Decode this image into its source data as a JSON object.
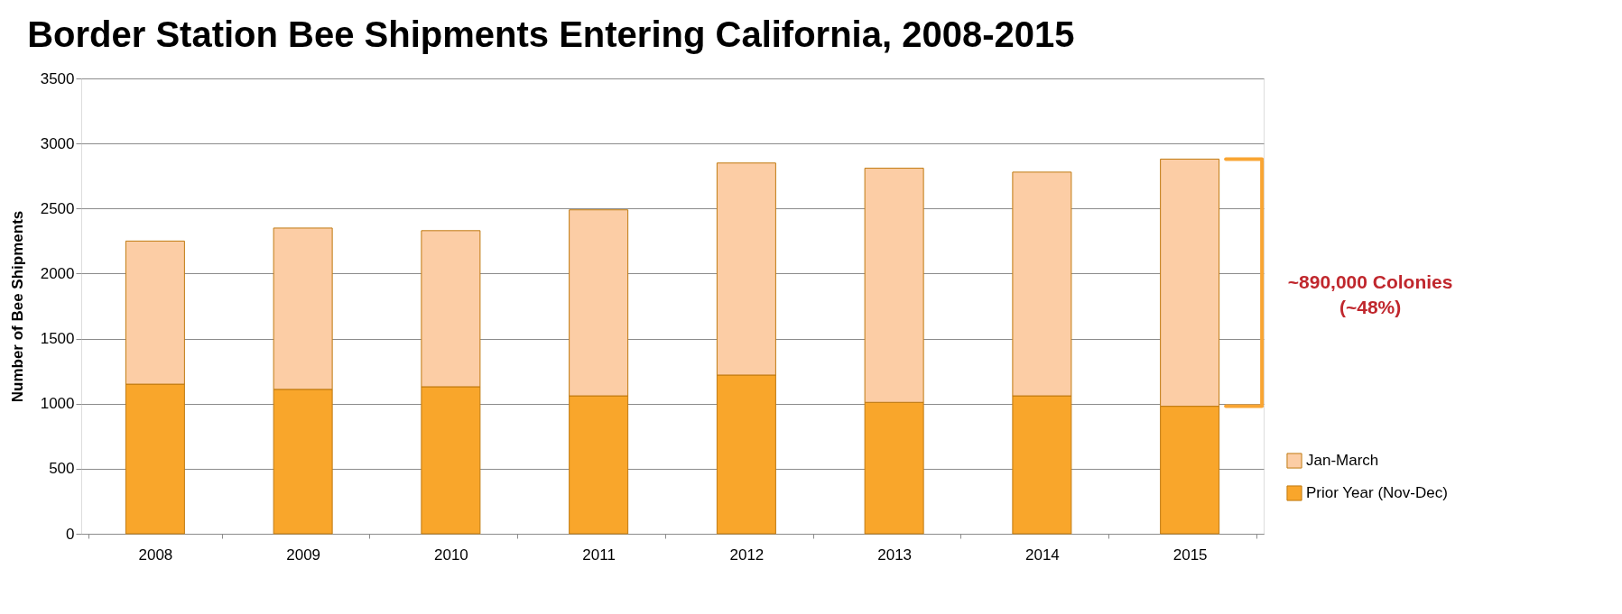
{
  "chart_data": {
    "type": "bar",
    "title": "Border Station Bee Shipments Entering California, 2008-2015",
    "ylabel": "Number of Bee Shipments",
    "categories": [
      "2008",
      "2009",
      "2010",
      "2011",
      "2012",
      "2013",
      "2014",
      "2015"
    ],
    "stacked": true,
    "series": [
      {
        "name": "Prior Year (Nov-Dec)",
        "color": "#f9a62b",
        "values": [
          1150,
          1110,
          1130,
          1060,
          1220,
          1010,
          1060,
          980
        ]
      },
      {
        "name": "Jan-March",
        "color": "#fccda5",
        "values": [
          1100,
          1240,
          1200,
          1430,
          1630,
          1800,
          1720,
          1900
        ]
      }
    ],
    "ylim": [
      0,
      3500
    ],
    "yticks": [
      0,
      500,
      1000,
      1500,
      2000,
      2500,
      3000,
      3500
    ],
    "grid": "y",
    "legend": "bottom right",
    "annotations": [
      "~890,000 Colonies\n(~48%)"
    ]
  }
}
